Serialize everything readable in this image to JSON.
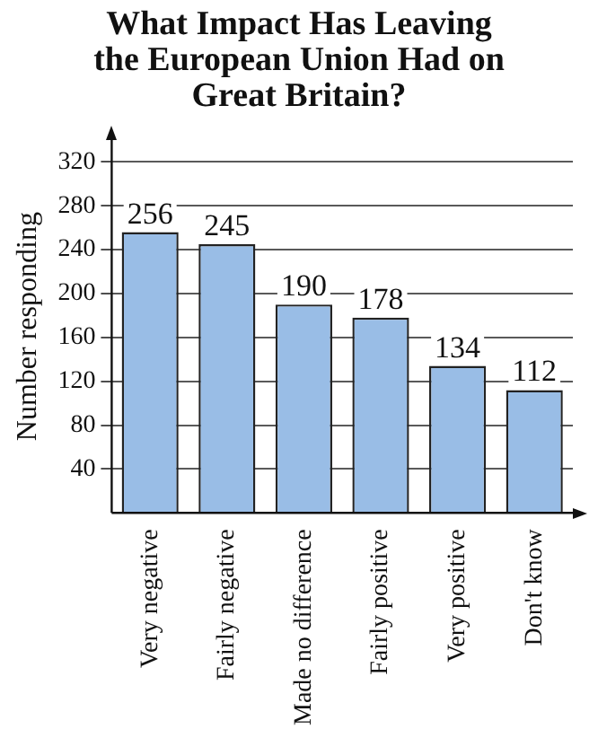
{
  "chart_data": {
    "type": "bar",
    "title": "What Impact Has Leaving the European Union Had on Great Britain?",
    "ylabel": "Number responding",
    "categories": [
      "Very negative",
      "Fairly negative",
      "Made no difference",
      "Fairly positive",
      "Very positive",
      "Don't know"
    ],
    "values": [
      256,
      245,
      190,
      178,
      134,
      112
    ],
    "color": "#99bde6",
    "ylim": [
      0,
      340
    ],
    "yticks": [
      40,
      80,
      120,
      160,
      200,
      240,
      280,
      320
    ],
    "grid": "y",
    "data_labels": true,
    "legend": false
  }
}
